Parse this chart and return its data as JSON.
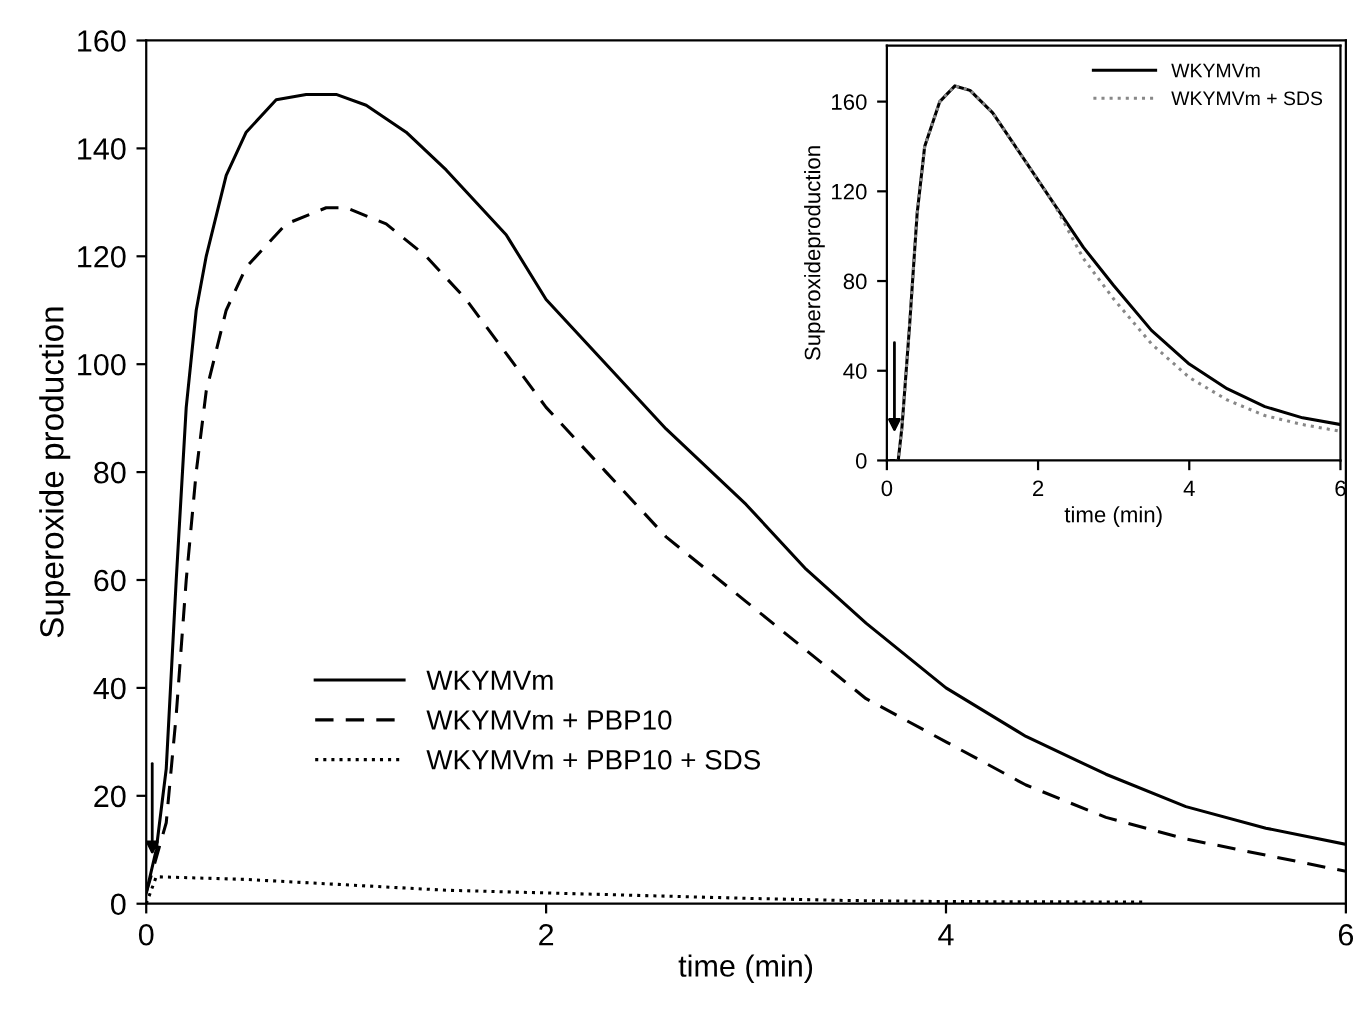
{
  "chart_data": [
    {
      "type": "line",
      "xlabel": "time (min)",
      "ylabel": "Superoxide production",
      "xlim": [
        0,
        6
      ],
      "ylim": [
        0,
        160
      ],
      "xticks": [
        0,
        2,
        4,
        6
      ],
      "yticks": [
        0,
        20,
        40,
        60,
        80,
        100,
        120,
        140,
        160
      ],
      "grid": false,
      "legend": "bottom left",
      "marker": "none",
      "series": [
        {
          "name": "WKYMVm",
          "color": "#000000",
          "line_style": "solid",
          "x": [
            0,
            0.05,
            0.1,
            0.15,
            0.2,
            0.25,
            0.3,
            0.4,
            0.5,
            0.65,
            0.8,
            0.95,
            1.1,
            1.3,
            1.5,
            1.8,
            2,
            2.3,
            2.6,
            3,
            3.3,
            3.6,
            4,
            4.4,
            4.8,
            5.2,
            5.6,
            6
          ],
          "values": [
            2,
            10,
            25,
            60,
            92,
            110,
            120,
            135,
            143,
            149,
            150,
            150,
            148,
            143,
            136,
            124,
            112,
            100,
            88,
            74,
            62,
            52,
            40,
            31,
            24,
            18,
            14,
            11
          ]
        },
        {
          "name": "WKYMVm + PBP10",
          "color": "#000000",
          "line_style": "dashed",
          "x": [
            0,
            0.1,
            0.15,
            0.2,
            0.25,
            0.3,
            0.4,
            0.5,
            0.7,
            0.9,
            1.0,
            1.2,
            1.4,
            1.6,
            1.8,
            2,
            2.3,
            2.6,
            3,
            3.3,
            3.6,
            4,
            4.4,
            4.8,
            5.2,
            5.6,
            6
          ],
          "values": [
            2,
            15,
            35,
            60,
            80,
            95,
            110,
            118,
            126,
            129,
            129,
            126,
            120,
            112,
            102,
            92,
            80,
            68,
            56,
            47,
            38,
            30,
            22,
            16,
            12,
            9,
            6
          ]
        },
        {
          "name": "WKYMVm + PBP10 + SDS",
          "color": "#000000",
          "line_style": "dotted",
          "x": [
            0,
            0.05,
            0.5,
            1,
            1.5,
            2,
            2.5,
            3,
            3.5,
            4,
            5
          ],
          "values": [
            0,
            5,
            4.5,
            3.5,
            2.5,
            2,
            1.5,
            1,
            0.6,
            0.4,
            0.3
          ]
        }
      ]
    },
    {
      "type": "line",
      "xlabel": "time (min)",
      "ylabel": "Superoxideproduction",
      "xlim": [
        0,
        6
      ],
      "ylim": [
        0,
        185
      ],
      "xticks": [
        0,
        2,
        4,
        6
      ],
      "yticks": [
        0,
        40,
        80,
        120,
        160
      ],
      "grid": false,
      "legend": "top right",
      "marker": "none",
      "series": [
        {
          "name": "WKYMVm",
          "color": "#000000",
          "line_style": "solid",
          "x": [
            0,
            0.15,
            0.2,
            0.3,
            0.4,
            0.5,
            0.7,
            0.9,
            1.1,
            1.4,
            1.8,
            2.2,
            2.6,
            3,
            3.5,
            4,
            4.5,
            5,
            5.5,
            6
          ],
          "values": [
            0,
            0,
            15,
            60,
            110,
            140,
            160,
            167,
            165,
            155,
            135,
            115,
            95,
            78,
            58,
            43,
            32,
            24,
            19,
            16
          ]
        },
        {
          "name": "WKYMVm + SDS",
          "color": "#888888",
          "line_style": "dotted",
          "x": [
            0,
            0.15,
            0.2,
            0.3,
            0.4,
            0.5,
            0.7,
            0.9,
            1.1,
            1.4,
            1.8,
            2.2,
            2.6,
            3,
            3.5,
            4,
            4.5,
            5,
            5.5,
            6
          ],
          "values": [
            0,
            0,
            15,
            60,
            110,
            140,
            160,
            167,
            165,
            155,
            135,
            115,
            90,
            72,
            52,
            37,
            27,
            20,
            16,
            13
          ]
        }
      ]
    }
  ]
}
